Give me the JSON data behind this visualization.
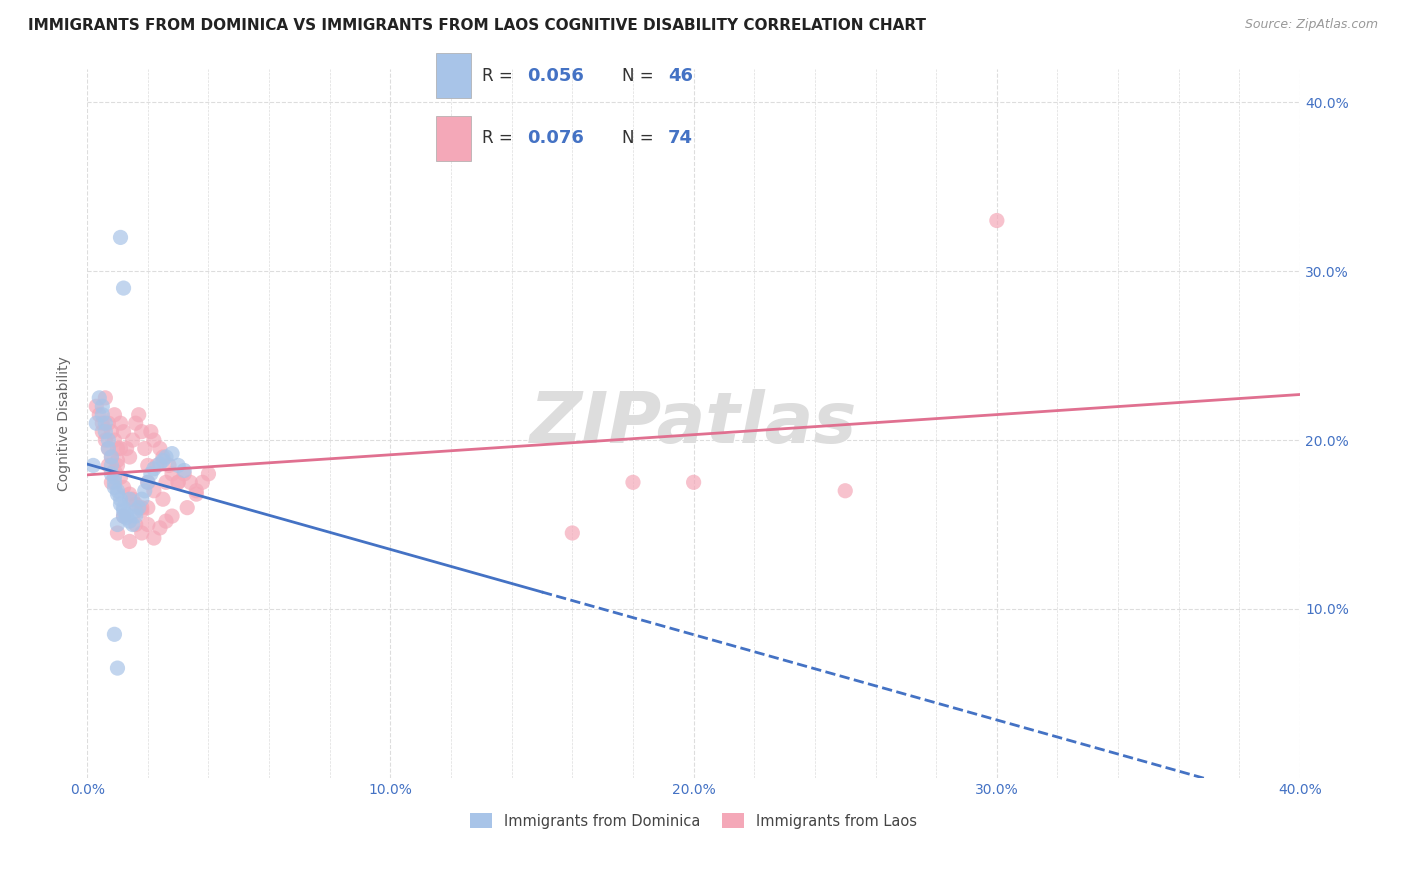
{
  "title": "IMMIGRANTS FROM DOMINICA VS IMMIGRANTS FROM LAOS COGNITIVE DISABILITY CORRELATION CHART",
  "source": "Source: ZipAtlas.com",
  "ylabel": "Cognitive Disability",
  "xlim": [
    0.0,
    0.4
  ],
  "ylim": [
    0.0,
    0.42
  ],
  "xtick_labels": [
    "0.0%",
    "",
    "",
    "",
    "",
    "10.0%",
    "",
    "",
    "",
    "",
    "20.0%",
    "",
    "",
    "",
    "",
    "30.0%",
    "",
    "",
    "",
    "",
    "40.0%"
  ],
  "xtick_vals": [
    0.0,
    0.02,
    0.04,
    0.06,
    0.08,
    0.1,
    0.12,
    0.14,
    0.16,
    0.18,
    0.2,
    0.22,
    0.24,
    0.26,
    0.28,
    0.3,
    0.32,
    0.34,
    0.36,
    0.38,
    0.4
  ],
  "ytick_labels": [
    "10.0%",
    "20.0%",
    "30.0%",
    "40.0%"
  ],
  "ytick_vals": [
    0.1,
    0.2,
    0.3,
    0.4
  ],
  "dominica_color": "#a8c4e8",
  "laos_color": "#f4a8b8",
  "dominica_line_color": "#4472c4",
  "laos_line_color": "#e07090",
  "legend_label_dominica": "Immigrants from Dominica",
  "legend_label_laos": "Immigrants from Laos",
  "watermark": "ZIPatlas",
  "dominica_x": [
    0.002,
    0.003,
    0.004,
    0.005,
    0.005,
    0.006,
    0.006,
    0.007,
    0.007,
    0.008,
    0.008,
    0.008,
    0.009,
    0.009,
    0.009,
    0.01,
    0.01,
    0.011,
    0.011,
    0.012,
    0.012,
    0.013,
    0.013,
    0.014,
    0.015,
    0.016,
    0.017,
    0.018,
    0.019,
    0.02,
    0.021,
    0.022,
    0.024,
    0.025,
    0.026,
    0.028,
    0.03,
    0.032,
    0.009,
    0.01,
    0.011,
    0.012,
    0.014,
    0.016,
    0.012,
    0.01
  ],
  "dominica_y": [
    0.185,
    0.21,
    0.225,
    0.22,
    0.215,
    0.21,
    0.205,
    0.2,
    0.195,
    0.19,
    0.185,
    0.18,
    0.178,
    0.175,
    0.172,
    0.17,
    0.168,
    0.165,
    0.162,
    0.16,
    0.158,
    0.156,
    0.154,
    0.152,
    0.15,
    0.155,
    0.16,
    0.165,
    0.17,
    0.175,
    0.18,
    0.183,
    0.186,
    0.188,
    0.19,
    0.192,
    0.185,
    0.182,
    0.085,
    0.065,
    0.32,
    0.29,
    0.165,
    0.158,
    0.155,
    0.15
  ],
  "laos_x": [
    0.003,
    0.004,
    0.005,
    0.005,
    0.006,
    0.006,
    0.007,
    0.007,
    0.008,
    0.008,
    0.009,
    0.009,
    0.01,
    0.01,
    0.011,
    0.011,
    0.012,
    0.013,
    0.014,
    0.015,
    0.016,
    0.017,
    0.018,
    0.019,
    0.02,
    0.021,
    0.022,
    0.023,
    0.024,
    0.025,
    0.026,
    0.027,
    0.028,
    0.03,
    0.032,
    0.034,
    0.036,
    0.038,
    0.04,
    0.015,
    0.018,
    0.02,
    0.022,
    0.025,
    0.028,
    0.03,
    0.033,
    0.036,
    0.01,
    0.012,
    0.014,
    0.016,
    0.018,
    0.02,
    0.022,
    0.024,
    0.026,
    0.007,
    0.008,
    0.009,
    0.01,
    0.011,
    0.012,
    0.014,
    0.016,
    0.018,
    0.02,
    0.25,
    0.18,
    0.2,
    0.16,
    0.3
  ],
  "laos_y": [
    0.22,
    0.215,
    0.21,
    0.205,
    0.2,
    0.225,
    0.195,
    0.21,
    0.205,
    0.19,
    0.215,
    0.2,
    0.195,
    0.185,
    0.21,
    0.195,
    0.205,
    0.195,
    0.19,
    0.2,
    0.21,
    0.215,
    0.205,
    0.195,
    0.185,
    0.205,
    0.2,
    0.185,
    0.195,
    0.19,
    0.175,
    0.185,
    0.18,
    0.175,
    0.18,
    0.175,
    0.17,
    0.175,
    0.18,
    0.165,
    0.16,
    0.175,
    0.17,
    0.165,
    0.155,
    0.175,
    0.16,
    0.168,
    0.145,
    0.155,
    0.14,
    0.15,
    0.145,
    0.15,
    0.142,
    0.148,
    0.152,
    0.185,
    0.175,
    0.182,
    0.188,
    0.178,
    0.172,
    0.168,
    0.162,
    0.158,
    0.16,
    0.17,
    0.175,
    0.175,
    0.145,
    0.33
  ],
  "background_color": "#ffffff",
  "grid_color": "#dddddd",
  "title_color": "#222222",
  "title_fontsize": 11,
  "axis_label_color": "#4472c4",
  "tick_fontsize": 10
}
